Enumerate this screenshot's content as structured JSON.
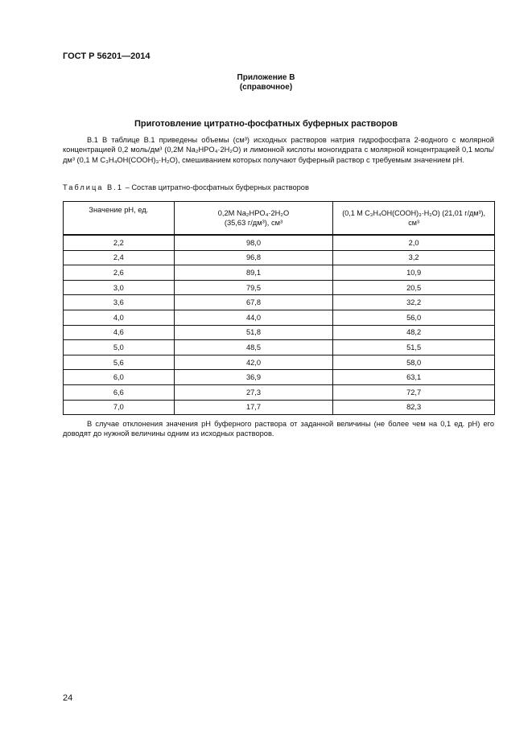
{
  "header": {
    "doc_id": "ГОСТ Р 56201—2014"
  },
  "appendix": {
    "title": "Приложение В",
    "subtitle": "(справочное)"
  },
  "section_title": "Приготовление цитратно-фосфатных буферных растворов",
  "paragraph_1": "В.1 В таблице В.1 приведены объемы (см³) исходных растворов  натрия гидрофосфата  2-водного с молярной концентрацией 0,2 моль/дм³ (0,2М Na₂HPO₄·2H₂O) и лимонной кислоты моногидрата с молярной концентрацией 0,1 моль/дм³ (0,1 М C₃H₄OH(COOH)₃·H₂O), смешиванием которых получают буферный раствор с требуемым значением pH.",
  "table_caption": {
    "label": "Таблица В.1",
    "text": " – Состав  цитратно-фосфатных буферных растворов"
  },
  "table": {
    "headers": [
      {
        "line1": "Значение pH, ед.",
        "line2": ""
      },
      {
        "line1": "0,2М Na₂HPO₄·2H₂O",
        "line2": "(35,63 г/дм³), см³"
      },
      {
        "line1": "(0,1 М C₃H₄OH(COOH)₃·H₂O) (21,01 г/дм³),",
        "line2": "см³"
      }
    ],
    "rows": [
      [
        "2,2",
        "98,0",
        "2,0"
      ],
      [
        "2,4",
        "96,8",
        "3,2"
      ],
      [
        "2,6",
        "89,1",
        "10,9"
      ],
      [
        "3,0",
        "79,5",
        "20,5"
      ],
      [
        "3,6",
        "67,8",
        "32,2"
      ],
      [
        "4,0",
        "44,0",
        "56,0"
      ],
      [
        "4,6",
        "51,8",
        "48,2"
      ],
      [
        "5,0",
        "48,5",
        "51,5"
      ],
      [
        "5,6",
        "42,0",
        "58,0"
      ],
      [
        "6,0",
        "36,9",
        "63,1"
      ],
      [
        "6,6",
        "27,3",
        "72,7"
      ],
      [
        "7,0",
        "17,7",
        "82,3"
      ]
    ]
  },
  "paragraph_2": "В случае отклонения значения pH буферного раствора от заданной величины (не более чем на 0,1 ед. pH) его доводят до нужной величины одним из исходных растворов.",
  "page_number": "24"
}
